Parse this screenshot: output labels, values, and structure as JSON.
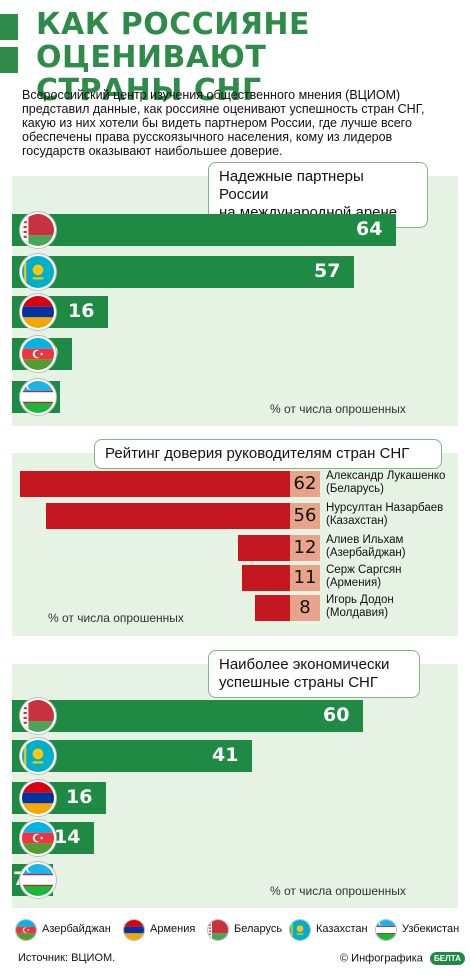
{
  "header": {
    "title_line1": "КАК РОССИЯНЕ ОЦЕНИВАЮТ",
    "title_line2": "СТРАНЫ СНГ",
    "accent_color": "#2e8b4a"
  },
  "intro": "Всероссийский центр изучения общественного мнения (ВЦИОМ) представил данные, как россияне оценивают успешность стран СНГ, какую из них хотели бы видеть партнером России, где лучше всего обеспечены права русскоязычного населения, кому из лидеров государств оказывают наибольшее доверие.",
  "chart_data": [
    {
      "type": "bar",
      "title": "Надежные партнеры России на международной арене",
      "categories": [
        "Беларусь",
        "Казахстан",
        "Армения",
        "Азербайджан",
        "Узбекистан"
      ],
      "values": [
        64,
        57,
        16,
        10,
        8
      ],
      "unit_note": "% от числа опрошенных",
      "bar_color": "#1f8a43",
      "orientation": "horizontal"
    },
    {
      "type": "bar",
      "title": "Рейтинг доверия руководителям стран СНГ",
      "categories": [
        "Александр Лукашенко (Беларусь)",
        "Нурсултан Назарбаев (Казахстан)",
        "Алиев Ильхам (Азербайджан)",
        "Серж Саргсян (Армения)",
        "Игорь Додон (Молдавия)"
      ],
      "values": [
        62,
        56,
        12,
        11,
        8
      ],
      "unit_note": "% от числа опрошенных",
      "bar_color": "#c4171f",
      "orientation": "horizontal-right-aligned"
    },
    {
      "type": "bar",
      "title": "Наиболее экономически успешные страны СНГ",
      "categories": [
        "Беларусь",
        "Казахстан",
        "Армения",
        "Азербайджан",
        "Узбекистан"
      ],
      "values": [
        60,
        41,
        16,
        14,
        7
      ],
      "unit_note": "% от числа опрошенных",
      "bar_color": "#1f8a43",
      "orientation": "horizontal"
    }
  ],
  "panels": {
    "partners": {
      "title_line1": "Надежные партнеры России",
      "title_line2": "на международной арене",
      "note": "% от числа опрошенных"
    },
    "trust": {
      "title": "Рейтинг доверия руководителям стран СНГ",
      "note": "% от числа опрошенных",
      "names": [
        [
          "Александр Лукашенко",
          "(Беларусь)"
        ],
        [
          "Нурсултан Назарбаев",
          "(Казахстан)"
        ],
        [
          "Алиев Ильхам",
          "(Азербайджан)"
        ],
        [
          "Серж Саргсян",
          "(Армения)"
        ],
        [
          "Игорь Додон",
          "(Молдавия)"
        ]
      ]
    },
    "economy": {
      "title_line1": "Наиболее экономически",
      "title_line2": "успешные страны СНГ",
      "note": "% от числа опрошенных"
    }
  },
  "legend": [
    {
      "label": "Азербайджан",
      "icon": "azerbaijan-flag-icon"
    },
    {
      "label": "Армения",
      "icon": "armenia-flag-icon"
    },
    {
      "label": "Беларусь",
      "icon": "belarus-flag-icon"
    },
    {
      "label": "Казахстан",
      "icon": "kazakhstan-flag-icon"
    },
    {
      "label": "Узбекистан",
      "icon": "uzbekistan-flag-icon"
    }
  ],
  "footer": {
    "source": "Источник: ВЦИОМ.",
    "credit": "© Инфографика",
    "logo_text": "БЕЛТА"
  }
}
